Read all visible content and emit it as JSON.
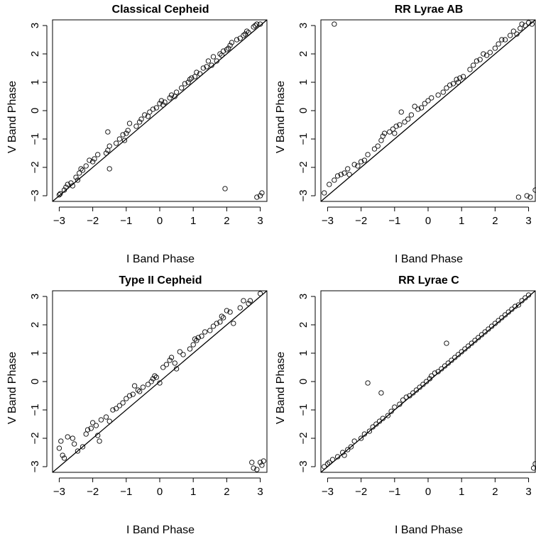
{
  "figure": {
    "xlabel": "I Band Phase",
    "ylabel": "V Band Phase",
    "xticks": [
      "−3",
      "−2",
      "−1",
      "0",
      "1",
      "2",
      "3"
    ],
    "yticks": [
      "−3",
      "−2",
      "−1",
      "0",
      "1",
      "2",
      "3"
    ]
  },
  "chart_data": [
    {
      "type": "scatter",
      "title": "Classical Cepheid",
      "xlabel": "I Band Phase",
      "ylabel": "V Band Phase",
      "xlim": [
        -3.2,
        3.2
      ],
      "ylim": [
        -3.2,
        3.2
      ],
      "reference_line": "y = x",
      "grid": false,
      "legend": "none",
      "points": [
        [
          -3.0,
          -2.97
        ],
        [
          -2.97,
          -2.93
        ],
        [
          -2.85,
          -2.8
        ],
        [
          -2.8,
          -2.7
        ],
        [
          -2.75,
          -2.6
        ],
        [
          -2.65,
          -2.55
        ],
        [
          -2.6,
          -2.65
        ],
        [
          -2.5,
          -2.35
        ],
        [
          -2.45,
          -2.45
        ],
        [
          -2.4,
          -2.2
        ],
        [
          -2.35,
          -2.05
        ],
        [
          -2.3,
          -2.1
        ],
        [
          -2.2,
          -1.95
        ],
        [
          -2.1,
          -1.75
        ],
        [
          -2.0,
          -1.8
        ],
        [
          -1.95,
          -1.7
        ],
        [
          -1.85,
          -1.55
        ],
        [
          -1.6,
          -1.5
        ],
        [
          -1.55,
          -1.4
        ],
        [
          -1.55,
          -0.75
        ],
        [
          -1.5,
          -2.05
        ],
        [
          -1.5,
          -1.25
        ],
        [
          -1.3,
          -1.15
        ],
        [
          -1.2,
          -1.0
        ],
        [
          -1.1,
          -0.85
        ],
        [
          -1.05,
          -1.05
        ],
        [
          -1.0,
          -0.8
        ],
        [
          -0.95,
          -0.7
        ],
        [
          -0.9,
          -0.45
        ],
        [
          -0.7,
          -0.55
        ],
        [
          -0.6,
          -0.4
        ],
        [
          -0.55,
          -0.3
        ],
        [
          -0.45,
          -0.15
        ],
        [
          -0.35,
          -0.2
        ],
        [
          -0.3,
          -0.05
        ],
        [
          -0.2,
          0.05
        ],
        [
          -0.1,
          0.1
        ],
        [
          0.0,
          0.25
        ],
        [
          0.05,
          0.35
        ],
        [
          0.1,
          0.2
        ],
        [
          0.15,
          0.3
        ],
        [
          0.3,
          0.45
        ],
        [
          0.35,
          0.55
        ],
        [
          0.45,
          0.5
        ],
        [
          0.5,
          0.65
        ],
        [
          0.65,
          0.8
        ],
        [
          0.75,
          0.95
        ],
        [
          0.85,
          1.0
        ],
        [
          0.9,
          1.1
        ],
        [
          0.95,
          1.15
        ],
        [
          1.05,
          1.2
        ],
        [
          1.1,
          1.35
        ],
        [
          1.2,
          1.3
        ],
        [
          1.3,
          1.5
        ],
        [
          1.4,
          1.55
        ],
        [
          1.45,
          1.75
        ],
        [
          1.55,
          1.6
        ],
        [
          1.6,
          1.9
        ],
        [
          1.7,
          1.75
        ],
        [
          1.8,
          2.0
        ],
        [
          1.85,
          1.95
        ],
        [
          1.9,
          2.1
        ],
        [
          2.0,
          2.15
        ],
        [
          2.05,
          2.2
        ],
        [
          2.1,
          2.3
        ],
        [
          2.15,
          2.4
        ],
        [
          2.3,
          2.5
        ],
        [
          2.4,
          2.55
        ],
        [
          2.5,
          2.65
        ],
        [
          2.55,
          2.7
        ],
        [
          2.6,
          2.8
        ],
        [
          2.65,
          2.75
        ],
        [
          2.8,
          2.95
        ],
        [
          2.85,
          3.0
        ],
        [
          2.9,
          3.05
        ],
        [
          3.0,
          3.05
        ],
        [
          1.95,
          -2.75
        ],
        [
          2.9,
          -3.05
        ],
        [
          3.0,
          -3.0
        ],
        [
          3.05,
          -2.9
        ]
      ]
    },
    {
      "type": "scatter",
      "title": "RR Lyrae AB",
      "xlabel": "I Band Phase",
      "ylabel": "V Band Phase",
      "xlim": [
        -3.2,
        3.2
      ],
      "ylim": [
        -3.2,
        3.2
      ],
      "reference_line": "y = x",
      "grid": false,
      "legend": "none",
      "points": [
        [
          -3.1,
          -2.9
        ],
        [
          -2.95,
          -2.6
        ],
        [
          -2.8,
          -2.45
        ],
        [
          -2.7,
          -2.3
        ],
        [
          -2.6,
          -2.25
        ],
        [
          -2.5,
          -2.2
        ],
        [
          -2.4,
          -2.05
        ],
        [
          -2.35,
          -2.25
        ],
        [
          -2.2,
          -1.9
        ],
        [
          -2.1,
          -1.95
        ],
        [
          -2.0,
          -1.8
        ],
        [
          -1.9,
          -1.75
        ],
        [
          -1.8,
          -1.55
        ],
        [
          -1.6,
          -1.35
        ],
        [
          -1.5,
          -1.25
        ],
        [
          -1.4,
          -1.05
        ],
        [
          -1.35,
          -0.9
        ],
        [
          -1.3,
          -0.8
        ],
        [
          -1.15,
          -0.75
        ],
        [
          -1.05,
          -0.65
        ],
        [
          -1.0,
          -0.8
        ],
        [
          -0.95,
          -0.55
        ],
        [
          -0.85,
          -0.5
        ],
        [
          -0.8,
          -0.05
        ],
        [
          -0.7,
          -0.4
        ],
        [
          -0.6,
          -0.3
        ],
        [
          -0.5,
          -0.15
        ],
        [
          -0.4,
          0.15
        ],
        [
          -0.3,
          0.05
        ],
        [
          -0.2,
          0.1
        ],
        [
          -0.1,
          0.25
        ],
        [
          0.0,
          0.35
        ],
        [
          0.1,
          0.45
        ],
        [
          0.3,
          0.55
        ],
        [
          0.45,
          0.65
        ],
        [
          0.55,
          0.8
        ],
        [
          0.65,
          0.9
        ],
        [
          0.75,
          0.95
        ],
        [
          0.85,
          1.1
        ],
        [
          0.9,
          1.0
        ],
        [
          0.95,
          1.15
        ],
        [
          1.05,
          1.2
        ],
        [
          1.25,
          1.45
        ],
        [
          1.35,
          1.6
        ],
        [
          1.45,
          1.75
        ],
        [
          1.55,
          1.8
        ],
        [
          1.65,
          2.0
        ],
        [
          1.75,
          1.95
        ],
        [
          1.85,
          2.05
        ],
        [
          2.0,
          2.2
        ],
        [
          2.1,
          2.35
        ],
        [
          2.2,
          2.5
        ],
        [
          2.3,
          2.5
        ],
        [
          2.45,
          2.65
        ],
        [
          2.55,
          2.8
        ],
        [
          2.65,
          2.7
        ],
        [
          2.75,
          2.9
        ],
        [
          2.8,
          3.05
        ],
        [
          2.9,
          3.0
        ],
        [
          3.0,
          3.1
        ],
        [
          3.1,
          3.05
        ],
        [
          -2.8,
          3.05
        ],
        [
          2.7,
          -3.05
        ],
        [
          2.95,
          -3.0
        ],
        [
          3.05,
          -3.05
        ],
        [
          3.2,
          -2.8
        ]
      ]
    },
    {
      "type": "scatter",
      "title": "Type II Cepheid",
      "xlabel": "I Band Phase",
      "ylabel": "V Band Phase",
      "xlim": [
        -3.2,
        3.2
      ],
      "ylim": [
        -3.2,
        3.2
      ],
      "reference_line": "y = x",
      "grid": false,
      "legend": "none",
      "points": [
        [
          -3.0,
          -2.35
        ],
        [
          -2.95,
          -2.1
        ],
        [
          -2.9,
          -2.6
        ],
        [
          -2.85,
          -2.7
        ],
        [
          -2.75,
          -1.95
        ],
        [
          -2.6,
          -2.0
        ],
        [
          -2.55,
          -2.2
        ],
        [
          -2.45,
          -2.45
        ],
        [
          -2.3,
          -2.3
        ],
        [
          -2.2,
          -1.85
        ],
        [
          -2.15,
          -1.7
        ],
        [
          -2.05,
          -1.65
        ],
        [
          -2.0,
          -1.45
        ],
        [
          -1.9,
          -1.55
        ],
        [
          -1.85,
          -1.9
        ],
        [
          -1.8,
          -2.1
        ],
        [
          -1.75,
          -1.35
        ],
        [
          -1.6,
          -1.25
        ],
        [
          -1.5,
          -1.4
        ],
        [
          -1.4,
          -1.0
        ],
        [
          -1.3,
          -0.95
        ],
        [
          -1.2,
          -0.85
        ],
        [
          -1.1,
          -0.75
        ],
        [
          -1.0,
          -0.6
        ],
        [
          -0.9,
          -0.5
        ],
        [
          -0.8,
          -0.45
        ],
        [
          -0.75,
          -0.15
        ],
        [
          -0.65,
          -0.3
        ],
        [
          -0.6,
          -0.35
        ],
        [
          -0.5,
          -0.2
        ],
        [
          -0.35,
          -0.1
        ],
        [
          -0.25,
          0.0
        ],
        [
          -0.2,
          0.1
        ],
        [
          -0.15,
          0.2
        ],
        [
          -0.1,
          0.15
        ],
        [
          0.0,
          -0.05
        ],
        [
          0.1,
          0.5
        ],
        [
          0.2,
          0.6
        ],
        [
          0.3,
          0.75
        ],
        [
          0.35,
          0.85
        ],
        [
          0.45,
          0.65
        ],
        [
          0.5,
          0.45
        ],
        [
          0.6,
          1.05
        ],
        [
          0.7,
          0.95
        ],
        [
          0.9,
          1.15
        ],
        [
          1.0,
          1.3
        ],
        [
          1.05,
          1.5
        ],
        [
          1.1,
          1.45
        ],
        [
          1.15,
          1.55
        ],
        [
          1.25,
          1.6
        ],
        [
          1.35,
          1.75
        ],
        [
          1.5,
          1.8
        ],
        [
          1.6,
          1.95
        ],
        [
          1.7,
          2.05
        ],
        [
          1.8,
          2.1
        ],
        [
          1.85,
          2.3
        ],
        [
          1.9,
          2.25
        ],
        [
          2.0,
          2.5
        ],
        [
          2.1,
          2.45
        ],
        [
          2.2,
          2.05
        ],
        [
          2.4,
          2.6
        ],
        [
          2.5,
          2.85
        ],
        [
          2.65,
          2.75
        ],
        [
          2.7,
          2.85
        ],
        [
          3.0,
          3.1
        ],
        [
          2.75,
          -2.85
        ],
        [
          2.8,
          -3.05
        ],
        [
          2.9,
          -3.1
        ],
        [
          3.0,
          -2.85
        ],
        [
          3.05,
          -2.95
        ],
        [
          3.1,
          -2.8
        ]
      ]
    },
    {
      "type": "scatter",
      "title": "RR Lyrae C",
      "xlabel": "I Band Phase",
      "ylabel": "V Band Phase",
      "xlim": [
        -3.2,
        3.2
      ],
      "ylim": [
        -3.2,
        3.2
      ],
      "reference_line": "y = x",
      "grid": false,
      "legend": "none",
      "points": [
        [
          -3.1,
          -3.0
        ],
        [
          -3.0,
          -2.9
        ],
        [
          -2.95,
          -2.85
        ],
        [
          -2.85,
          -2.75
        ],
        [
          -2.7,
          -2.65
        ],
        [
          -2.55,
          -2.5
        ],
        [
          -2.5,
          -2.6
        ],
        [
          -2.4,
          -2.4
        ],
        [
          -2.3,
          -2.3
        ],
        [
          -2.2,
          -2.1
        ],
        [
          -2.0,
          -2.0
        ],
        [
          -1.9,
          -1.85
        ],
        [
          -1.8,
          -0.05
        ],
        [
          -1.75,
          -1.75
        ],
        [
          -1.65,
          -1.6
        ],
        [
          -1.55,
          -1.5
        ],
        [
          -1.45,
          -1.4
        ],
        [
          -1.4,
          -0.4
        ],
        [
          -1.35,
          -1.3
        ],
        [
          -1.2,
          -1.2
        ],
        [
          -1.1,
          -1.05
        ],
        [
          -1.0,
          -0.9
        ],
        [
          -0.85,
          -0.8
        ],
        [
          -0.75,
          -0.65
        ],
        [
          -0.65,
          -0.55
        ],
        [
          -0.55,
          -0.5
        ],
        [
          -0.45,
          -0.4
        ],
        [
          -0.35,
          -0.3
        ],
        [
          -0.25,
          -0.2
        ],
        [
          -0.15,
          -0.1
        ],
        [
          -0.05,
          0.0
        ],
        [
          0.05,
          0.1
        ],
        [
          0.1,
          0.2
        ],
        [
          0.2,
          0.3
        ],
        [
          0.3,
          0.35
        ],
        [
          0.4,
          0.45
        ],
        [
          0.5,
          0.55
        ],
        [
          0.55,
          1.35
        ],
        [
          0.6,
          0.65
        ],
        [
          0.7,
          0.75
        ],
        [
          0.8,
          0.85
        ],
        [
          0.9,
          0.95
        ],
        [
          1.0,
          1.05
        ],
        [
          1.1,
          1.15
        ],
        [
          1.2,
          1.25
        ],
        [
          1.3,
          1.35
        ],
        [
          1.4,
          1.45
        ],
        [
          1.5,
          1.55
        ],
        [
          1.6,
          1.65
        ],
        [
          1.7,
          1.75
        ],
        [
          1.8,
          1.85
        ],
        [
          1.9,
          1.95
        ],
        [
          2.0,
          2.05
        ],
        [
          2.1,
          2.15
        ],
        [
          2.2,
          2.25
        ],
        [
          2.3,
          2.35
        ],
        [
          2.4,
          2.45
        ],
        [
          2.5,
          2.55
        ],
        [
          2.6,
          2.65
        ],
        [
          2.7,
          2.7
        ],
        [
          2.8,
          2.85
        ],
        [
          2.9,
          2.95
        ],
        [
          3.0,
          3.05
        ],
        [
          3.15,
          -3.05
        ],
        [
          3.2,
          -2.9
        ]
      ]
    }
  ]
}
